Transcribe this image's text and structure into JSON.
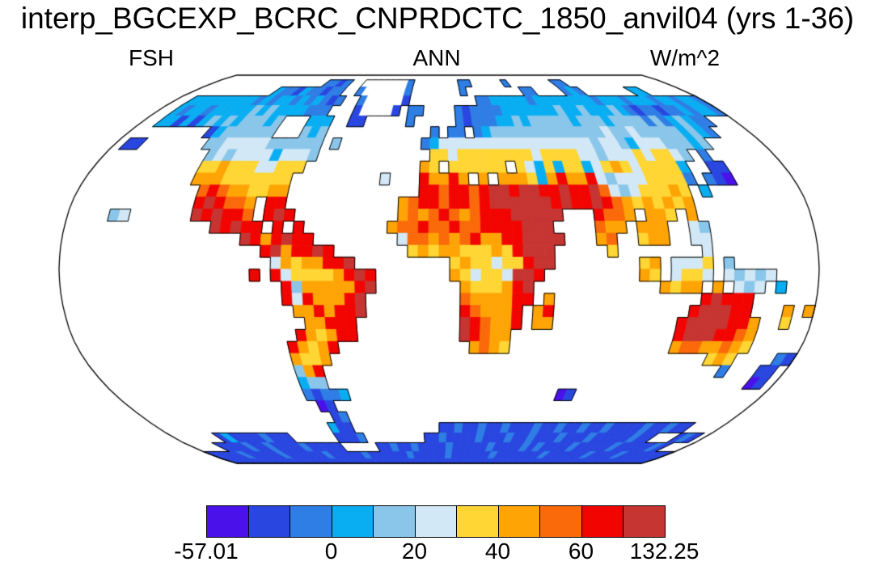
{
  "title": "interp_BGCEXP_BCRC_CNPRDCTC_1850_anvil04 (yrs 1-36)",
  "header": {
    "left": "FSH",
    "center": "ANN",
    "right": "W/m^2"
  },
  "chart_data": {
    "type": "heatmap",
    "subtype": "filled-gridded-map",
    "projection": "robinson",
    "variable": "FSH",
    "season": "ANN",
    "units": "W/m^2",
    "title": "interp_BGCEXP_BCRC_CNPRDCTC_1850_anvil04 (yrs 1-36)",
    "data_min": -57.01,
    "data_max": 132.25,
    "contour_levels": [
      -20,
      -10,
      0,
      10,
      20,
      30,
      40,
      50,
      60,
      70
    ],
    "ocean_masked": true,
    "background_color": "#ffffff",
    "outline_color": "#000000",
    "colorbar_labels": [
      {
        "text": "-57.01",
        "edge": 0
      },
      {
        "text": "0",
        "edge": 3
      },
      {
        "text": "20",
        "edge": 5
      },
      {
        "text": "40",
        "edge": 7
      },
      {
        "text": "60",
        "edge": 9
      },
      {
        "text": "132.25",
        "edge": 11
      }
    ],
    "palette": [
      {
        "key": "a",
        "hex": "#4B11EA",
        "range": "-57.01 to -20"
      },
      {
        "key": "b",
        "hex": "#2947E0",
        "range": "-20 to -10"
      },
      {
        "key": "c",
        "hex": "#2F7EE5",
        "range": "-10 to 0"
      },
      {
        "key": "d",
        "hex": "#09AEF2",
        "range": "0 to 10"
      },
      {
        "key": "e",
        "hex": "#8AC6EA",
        "range": "10 to 20"
      },
      {
        "key": "f",
        "hex": "#D3E8F6",
        "range": "20 to 30"
      },
      {
        "key": "g",
        "hex": "#FFD633",
        "range": "30 to 40"
      },
      {
        "key": "h",
        "hex": "#FFA405",
        "range": "40 to 50"
      },
      {
        "key": "i",
        "hex": "#FA6A0A",
        "range": "50 to 60"
      },
      {
        "key": "j",
        "hex": "#F20500",
        "range": "60 to 70"
      },
      {
        "key": "k",
        "hex": "#C63532",
        "range": "70 to 132.25"
      },
      {
        "key": "w",
        "hex": "#FFFFFF",
        "range": "missing (Greenland ice sheet)"
      }
    ],
    "grid": {
      "description": "5-degree cells; rows from 90N to 90S, 72 columns from 180W to 180E; '.' = ocean/no data",
      "lon0": -180,
      "dlon": 5,
      "lat0": 90,
      "dlat": -5,
      "rows": [
        [
          "..........",
          "..........",
          "..........",
          "..........",
          "..........",
          "..........",
          "..........",
          ".."
        ],
        [
          "..........",
          "........cc",
          "bc..wwwwww",
          "wc.......c",
          "c.....c...",
          "....cc....",
          "..........",
          ".."
        ],
        [
          "..........",
          "..dccbdccb",
          "cc..cwwwww",
          "wc.......c",
          "........cc",
          "....cdc...",
          "....dd....",
          ".."
        ],
        [
          "..dddddddd",
          "dcdcddcdcd",
          "cbc..cwwww",
          "wb........",
          ".ccdddddcd",
          "dddddddcdd",
          "dcdddcddcd",
          "dc"
        ],
        [
          "..dcddcddd",
          "ddededdddc",
          "cc...bwwww",
          "b.cc....cb",
          "ccccdddddd",
          "deddeddded",
          "cbccbccdcd",
          "dc"
        ],
        [
          "..ddbdbded",
          "edeeede...",
          "ddd..bb...",
          "..c.....cb",
          "cccddedeee",
          "eedeeedeee",
          "ececdedcc.",
          ".."
        ],
        [
          ".........b",
          "deeeeee...",
          "ede.......",
          ".....c.cc.",
          "cdeeeeeeee",
          "eeeeefeefe",
          "eeeededc..",
          ".."
        ],
        [
          ".bb.......",
          "eefffffeee",
          "eee.e.....",
          "....cdffff",
          "ffffffffff",
          "fffeffedff",
          "feeede....",
          ".."
        ],
        [
          "..........",
          ".efeffffdf",
          "ffe.......",
          ".....ggfgg",
          "ggggggfggg",
          "gffefffgfg",
          "gfe.c.....",
          ".."
        ],
        [
          "..........",
          ".gghgggffg",
          "gg........",
          "....hg.ggg",
          "ggg.gfdgdg",
          "gdfghgfggg",
          "gd..bb....",
          ".."
        ],
        [
          "..........",
          ".hhhgggggg",
          "g.........",
          "f...jhhjh.",
          "h.hhhgdhjh",
          "hjfefffggg",
          "gc.cba....",
          ".."
        ],
        [
          "..........",
          "..ijihhggh",
          "h.........",
          "....jjijji",
          "jkkjkkjjkj",
          "jkifefgggh",
          "g.d.......",
          ".."
        ],
        [
          "..........",
          "..jkjiih.j",
          "j.........",
          "..hijjijji",
          "jkkkkkkjkj",
          "jkjihghghg",
          "h.........",
          ".."
        ],
        [
          "....ef....",
          "..kjkjji.j",
          "kj........",
          "..hihijihi",
          "jjjkkkkk..",
          ".jiih.hhg.",
          "h.........",
          ".."
        ],
        [
          "..........",
          "....kjkjj.",
          "j.j.......",
          ".hiijiijii",
          "jjjjkkk...",
          ".ihh.hhh..",
          "fe........",
          ".."
        ],
        [
          "..........",
          ".......kjh",
          "jkjj......",
          "..fiihihij",
          "hhjjkkkk..",
          ".hi..ghh..",
          "ff........",
          ".."
        ],
        [
          "..........",
          ".........j",
          "khjjkj....",
          "...ghghhgg",
          "ghgjkkk...",
          "..g.......",
          ".f........",
          ".."
        ],
        [
          "..........",
          "..........",
          "fhghhjjk..",
          ".......ghg",
          "gfggjkk...",
          ".....gh.ff",
          "fg.e......",
          ".."
        ],
        [
          "..........",
          "........j.",
          "jfgggghjkj",
          ".......hgf",
          "ggfkkj....",
          ".....hg.fg",
          "gf.fefef..",
          ".."
        ],
        [
          "..........",
          "..........",
          ".jehhhhhjk",
          "........hg",
          "gghjk.....",
          ".......hgh",
          "h.h.fef.d.",
          ".."
        ],
        [
          "..........",
          "..........",
          ".jfjhhhjk.",
          "........ih",
          "hhhjj.h...",
          "..........",
          ".jkjjj....",
          ".."
        ],
        [
          "..........",
          "..........",
          "..hhjhjjk.",
          "........ji",
          "hhhj.hj...",
          "..........",
          "jkkkjj...h",
          ".h"
        ],
        [
          "..........",
          "..........",
          "...hhjjj..",
          "........kj",
          "ihhj.hh...",
          ".........j",
          "kkkkjjh..g",
          ".."
        ],
        [
          "..........",
          "..........",
          "..jhghjj..",
          "........kj",
          "ihh.......",
          ".........j",
          "kkkjjih...",
          ".."
        ],
        [
          "..........",
          "..........",
          ".jhghj....",
          ".........h",
          "ihg.......",
          ".........h",
          "iihhihg...",
          ".."
        ],
        [
          "..........",
          "..........",
          ".hggh.....",
          "..........",
          "..........",
          "..........",
          "...ghg....",
          "cb"
        ],
        [
          "..........",
          "..........",
          ".ehj......",
          "..........",
          "..........",
          "..........",
          ".....c...b",
          "b."
        ],
        [
          "..........",
          "..........",
          ".dee......",
          "..........",
          "..........",
          "..........",
          ".........a",
          "b."
        ],
        [
          "..........",
          "..........",
          ".cbccd....",
          "..........",
          ".........a",
          "b.........",
          "..........",
          ".."
        ],
        [
          "..........",
          "..........",
          "..ab......",
          "..........",
          "..........",
          "..........",
          "..........",
          ".."
        ],
        [
          "..........",
          "..........",
          "...bc.....",
          "..........",
          "..........",
          "..........",
          "..........",
          ".."
        ],
        [
          "..........",
          "..........",
          "..dbb.....",
          "......bbcb",
          "bcbbcbbbcb",
          "bcbbcbbcbb",
          "bbcbbcbb..",
          ".."
        ],
        [
          "......bdbb",
          "bbcbbb....",
          "..bbbc....",
          "....bbcbbb",
          "bcbbbcbbcb",
          "bbcbbbcbbb",
          "bbcbb...bc",
          "b."
        ],
        [
          "....bbbbcb",
          "bcbbbbcbbb",
          "bb.....bbc",
          "bbcbbbbcbb",
          "bbbcbbbbcb",
          "cbbbbcbbbb",
          "bcbbbbbcb.",
          ".."
        ],
        [
          "bbbbbcbbbb",
          "bcbbbbbbcb",
          "bbbbcbbbbb",
          "bcbbbbbcbb",
          "bbbbcbbbbb",
          "bbcbbbbbbc",
          "bbbbcbbbbb",
          "bb"
        ],
        [
          "bbbbbbbbbb",
          "bbbbbbbbbb",
          "bbbbbbbbbb",
          "bbbbbbbbbb",
          "bbbbbbbbbb",
          "bbbbbbbbbb",
          "bbbbbbbbbb",
          "bb"
        ]
      ]
    }
  }
}
